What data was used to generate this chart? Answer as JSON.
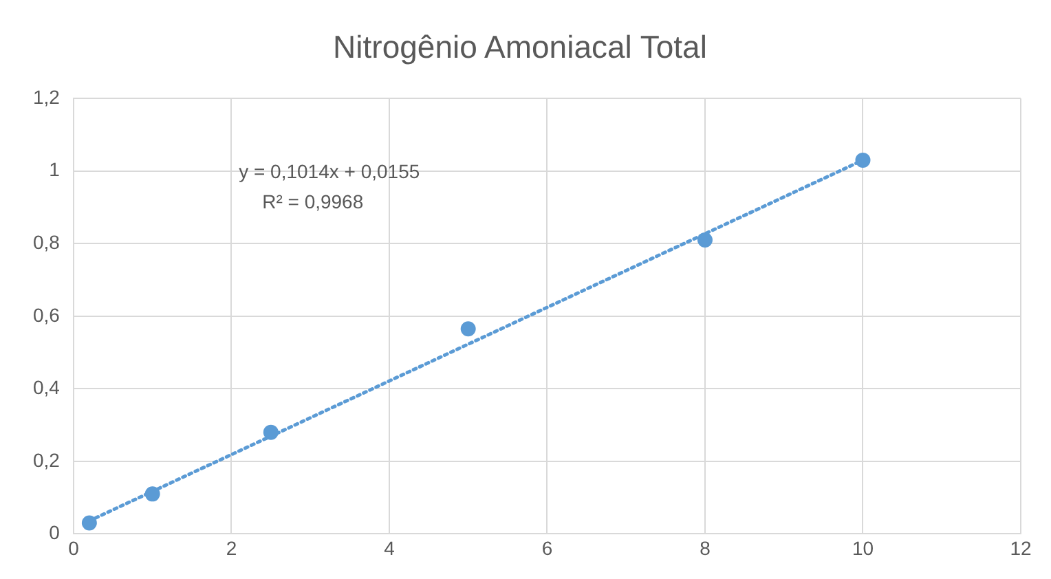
{
  "chart_data": {
    "type": "scatter",
    "title": "Nitrogênio Amoniacal Total",
    "series": [
      {
        "color": "#5b9bd5",
        "x": [
          0.2,
          1,
          2.5,
          5,
          8,
          10
        ],
        "values": [
          0.03,
          0.11,
          0.28,
          0.565,
          0.81,
          1.03
        ]
      },
      {
        "type": "line",
        "color": "#5b9bd5",
        "line_style": "dotted",
        "marker": "none",
        "x": [
          0.2,
          10
        ],
        "values": [
          0.036,
          1.03
        ]
      }
    ],
    "annotations": [
      "y = 0,1014x + 0,0155",
      "R² = 0,9968"
    ],
    "xlim": [
      0,
      12
    ],
    "xticks": [
      0,
      2,
      4,
      6,
      8,
      10,
      12
    ],
    "ylim": [
      0,
      1.2
    ],
    "yticks": [
      0,
      {
        "value": 0.2,
        "label": "0,2"
      },
      {
        "value": 0.4,
        "label": "0,4"
      },
      {
        "value": 0.6,
        "label": "0,6"
      },
      {
        "value": 0.8,
        "label": "0,8"
      },
      1,
      {
        "value": 1.2,
        "label": "1,2"
      }
    ],
    "grid": true,
    "legend": false,
    "marker": "circle"
  }
}
